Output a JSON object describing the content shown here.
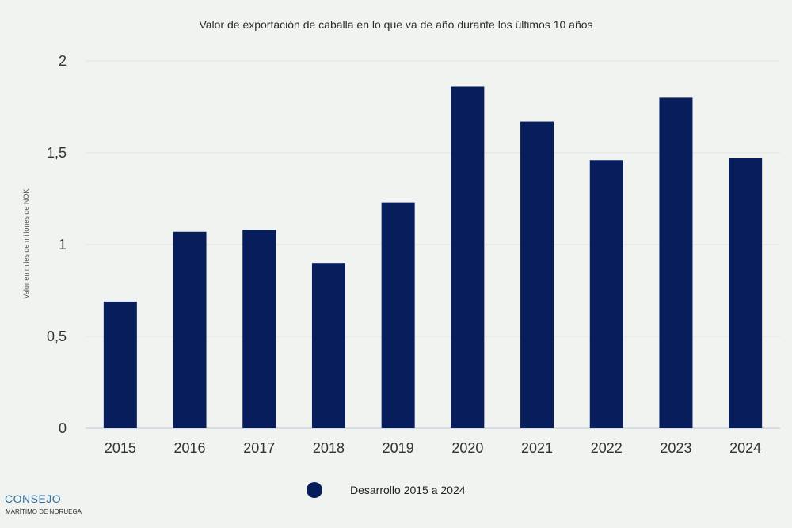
{
  "chart_data": {
    "type": "bar",
    "title": "Valor de exportación de caballa en lo que va de año durante los últimos 10 años",
    "ylabel": "Valor en miles de millones de NOK",
    "xlabel": "",
    "categories": [
      "2015",
      "2016",
      "2017",
      "2018",
      "2019",
      "2020",
      "2021",
      "2022",
      "2023",
      "2024"
    ],
    "series": [
      {
        "name": "Desarrollo 2015 a 2024",
        "values": [
          0.69,
          1.07,
          1.08,
          0.9,
          1.23,
          1.86,
          1.67,
          1.46,
          1.8,
          1.47
        ]
      }
    ],
    "ylim": [
      0,
      2
    ],
    "yticks": [
      "0",
      "0,5",
      "1",
      "1,5",
      "2"
    ],
    "ytick_values": [
      0,
      0.5,
      1,
      1.5,
      2
    ],
    "grid": true,
    "legend_position": "bottom",
    "bar_color": "#081d5c"
  },
  "brand": {
    "line1": "CONSEJO",
    "line2": "MARÍTIMO DE NORUEGA"
  }
}
